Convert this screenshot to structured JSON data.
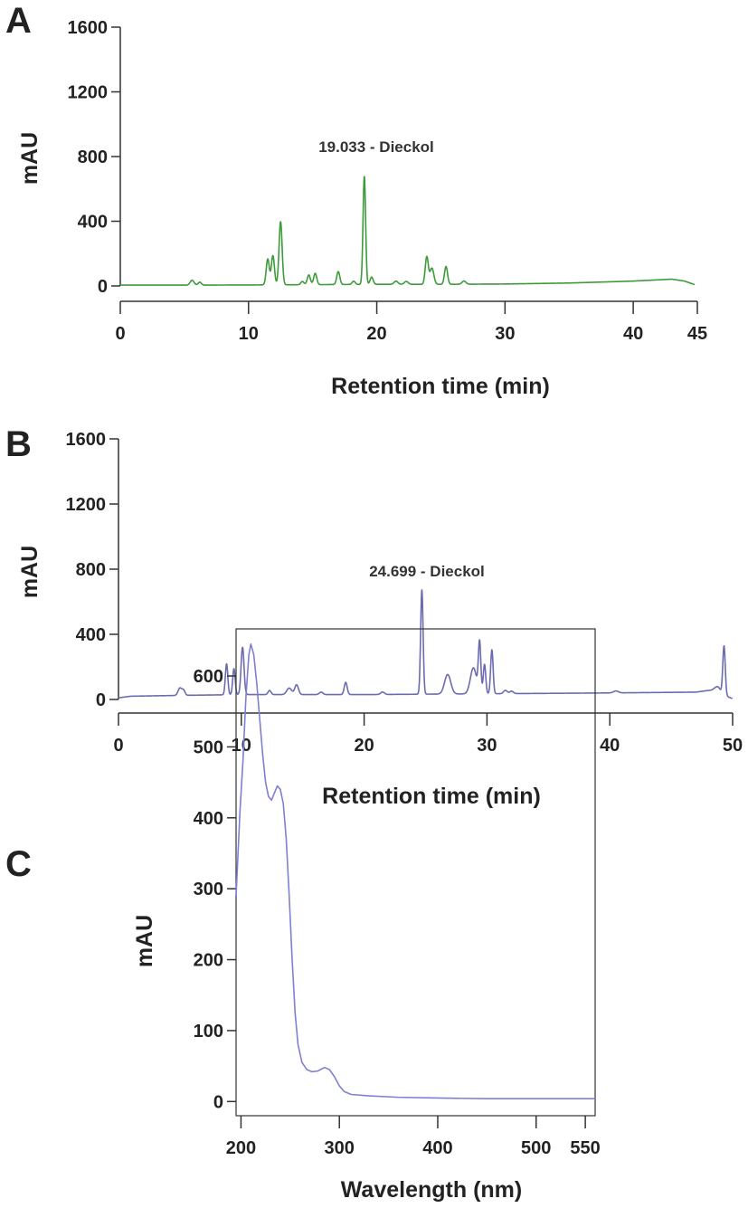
{
  "chart_data": [
    {
      "panel": "A",
      "type": "line",
      "xlabel": "Retention time (min)",
      "ylabel": "mAU",
      "xlim": [
        0,
        45
      ],
      "ylim": [
        0,
        1600
      ],
      "xticks": [
        0,
        10,
        20,
        30,
        40,
        45
      ],
      "yticks": [
        0,
        400,
        800,
        1200,
        1600
      ],
      "color": "#3e9a3a",
      "annotation": {
        "text": "19.033 - Dieckol",
        "x": 19.0,
        "y": 780
      },
      "series": [
        {
          "baseline": [
            [
              0,
              5
            ],
            [
              5,
              5
            ],
            [
              10,
              6
            ],
            [
              15,
              8
            ],
            [
              20,
              10
            ],
            [
              25,
              10
            ],
            [
              30,
              12
            ],
            [
              35,
              18
            ],
            [
              40,
              30
            ],
            [
              43,
              42
            ],
            [
              44,
              30
            ],
            [
              44.8,
              8
            ]
          ],
          "peaks": [
            [
              5.6,
              30,
              0.15
            ],
            [
              6.2,
              18,
              0.12
            ],
            [
              11.5,
              160,
              0.12
            ],
            [
              11.9,
              180,
              0.12
            ],
            [
              12.5,
              390,
              0.12
            ],
            [
              14.2,
              20,
              0.12
            ],
            [
              14.7,
              60,
              0.12
            ],
            [
              15.2,
              70,
              0.12
            ],
            [
              17.0,
              80,
              0.12
            ],
            [
              18.2,
              20,
              0.12
            ],
            [
              19.03,
              670,
              0.1
            ],
            [
              19.6,
              45,
              0.12
            ],
            [
              21.5,
              20,
              0.15
            ],
            [
              22.3,
              18,
              0.15
            ],
            [
              23.9,
              170,
              0.12
            ],
            [
              24.3,
              100,
              0.15
            ],
            [
              25.4,
              110,
              0.12
            ],
            [
              26.8,
              20,
              0.15
            ]
          ]
        }
      ]
    },
    {
      "panel": "B",
      "type": "line",
      "xlabel": "Retention time (min)",
      "ylabel": "mAU",
      "xlim": [
        0,
        50
      ],
      "ylim": [
        0,
        1600
      ],
      "xticks": [
        0,
        10,
        20,
        30,
        40,
        50
      ],
      "yticks": [
        0,
        400,
        800,
        1200,
        1600
      ],
      "color": "#6b6bb0",
      "annotation": {
        "text": "24.699 - Dieckol",
        "x": 24.7,
        "y": 740
      },
      "series": [
        {
          "baseline": [
            [
              0,
              10
            ],
            [
              1,
              20
            ],
            [
              5,
              25
            ],
            [
              10,
              30
            ],
            [
              20,
              30
            ],
            [
              30,
              35
            ],
            [
              40,
              40
            ],
            [
              47,
              45
            ],
            [
              48.5,
              60
            ],
            [
              49.5,
              20
            ],
            [
              50,
              5
            ]
          ],
          "peaks": [
            [
              5.0,
              45,
              0.15
            ],
            [
              5.3,
              30,
              0.12
            ],
            [
              8.8,
              190,
              0.1
            ],
            [
              9.4,
              160,
              0.1
            ],
            [
              10.1,
              290,
              0.12
            ],
            [
              12.3,
              25,
              0.12
            ],
            [
              13.9,
              40,
              0.2
            ],
            [
              14.5,
              60,
              0.15
            ],
            [
              16.5,
              15,
              0.15
            ],
            [
              18.5,
              75,
              0.12
            ],
            [
              21.5,
              15,
              0.15
            ],
            [
              24.7,
              640,
              0.1
            ],
            [
              26.8,
              120,
              0.25
            ],
            [
              28.9,
              160,
              0.25
            ],
            [
              29.4,
              310,
              0.1
            ],
            [
              29.8,
              180,
              0.1
            ],
            [
              30.4,
              270,
              0.1
            ],
            [
              31.5,
              20,
              0.15
            ],
            [
              32.0,
              15,
              0.15
            ],
            [
              40.5,
              12,
              0.2
            ],
            [
              48.8,
              30,
              0.2
            ],
            [
              49.3,
              300,
              0.1
            ]
          ]
        }
      ]
    },
    {
      "panel": "C",
      "type": "line",
      "xlabel": "Wavelength (nm)",
      "ylabel": "mAU",
      "xlim": [
        195,
        560
      ],
      "ylim": [
        -20,
        660
      ],
      "xticks": [
        200,
        300,
        400,
        500,
        550
      ],
      "yticks": [
        0,
        100,
        200,
        300,
        400,
        500,
        600
      ],
      "color": "#7f7fd6",
      "series": [
        {
          "points": [
            [
              195,
              290
            ],
            [
              197,
              350
            ],
            [
              199,
              410
            ],
            [
              202,
              480
            ],
            [
              205,
              570
            ],
            [
              208,
              630
            ],
            [
              210,
              645
            ],
            [
              213,
              630
            ],
            [
              216,
              590
            ],
            [
              219,
              540
            ],
            [
              222,
              490
            ],
            [
              225,
              450
            ],
            [
              228,
              430
            ],
            [
              231,
              425
            ],
            [
              234,
              435
            ],
            [
              237,
              445
            ],
            [
              240,
              440
            ],
            [
              243,
              420
            ],
            [
              246,
              370
            ],
            [
              249,
              290
            ],
            [
              252,
              200
            ],
            [
              255,
              125
            ],
            [
              258,
              80
            ],
            [
              262,
              55
            ],
            [
              267,
              45
            ],
            [
              272,
              42
            ],
            [
              278,
              43
            ],
            [
              285,
              48
            ],
            [
              290,
              45
            ],
            [
              295,
              35
            ],
            [
              300,
              22
            ],
            [
              305,
              14
            ],
            [
              312,
              10
            ],
            [
              330,
              8
            ],
            [
              360,
              6
            ],
            [
              400,
              5
            ],
            [
              450,
              4
            ],
            [
              500,
              4
            ],
            [
              560,
              4
            ]
          ]
        }
      ]
    }
  ],
  "panels": [
    {
      "letter": "A"
    },
    {
      "letter": "B"
    },
    {
      "letter": "C"
    }
  ]
}
